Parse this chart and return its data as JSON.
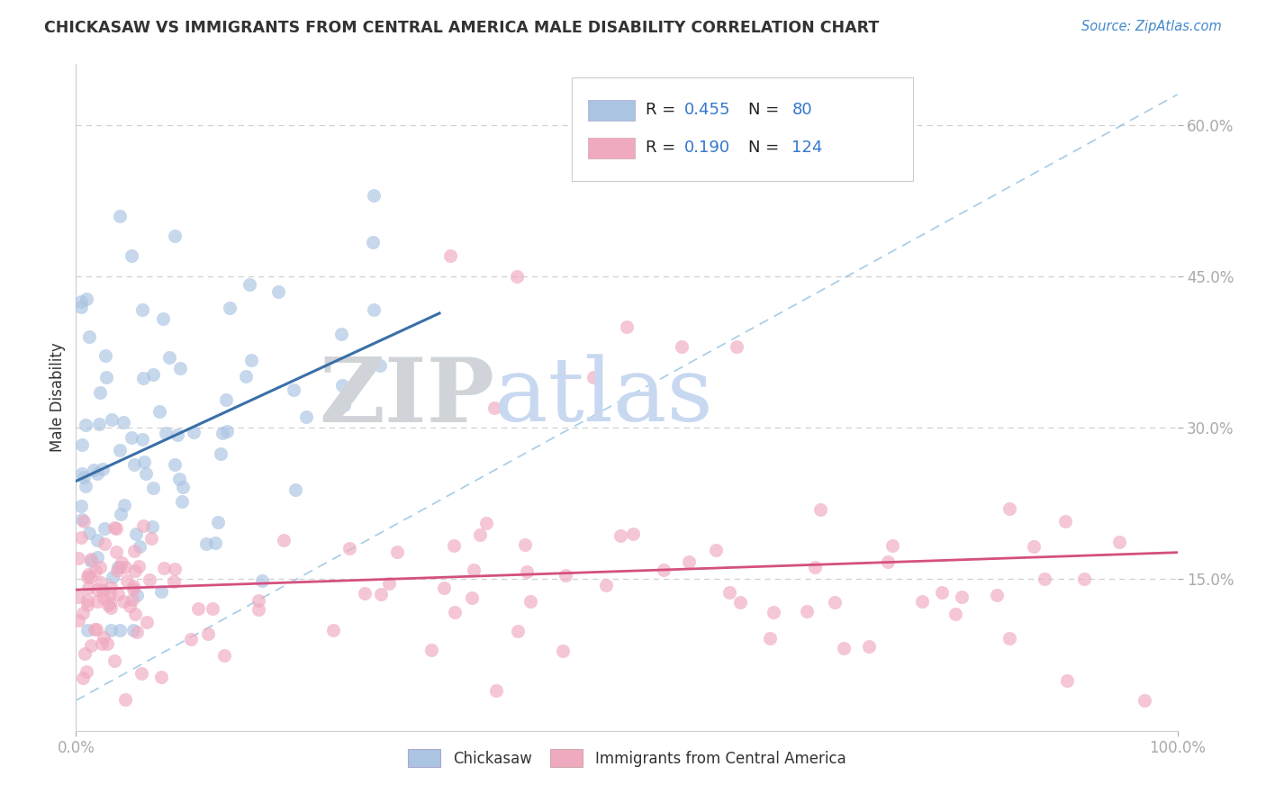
{
  "title": "CHICKASAW VS IMMIGRANTS FROM CENTRAL AMERICA MALE DISABILITY CORRELATION CHART",
  "source_text": "Source: ZipAtlas.com",
  "ylabel": "Male Disability",
  "x_min": 0.0,
  "x_max": 1.0,
  "y_min": 0.0,
  "y_max": 0.66,
  "x_tick_labels": [
    "0.0%",
    "100.0%"
  ],
  "y_tick_labels": [
    "15.0%",
    "30.0%",
    "45.0%",
    "60.0%"
  ],
  "y_tick_values": [
    0.15,
    0.3,
    0.45,
    0.6
  ],
  "legend_r1": "R = 0.455",
  "legend_n1": "N =  80",
  "legend_r2": "R = 0.190",
  "legend_n2": "N = 124",
  "chickasaw_color": "#aac4e2",
  "chickasaw_edge_color": "#aac4e2",
  "chickasaw_line_color": "#3a6fa8",
  "immigrants_color": "#f0aac0",
  "immigrants_edge_color": "#f0aac0",
  "immigrants_line_color": "#d45080",
  "watermark_zip_color": "#d0d4d8",
  "watermark_atlas_color": "#c8d8f0",
  "background_color": "#ffffff",
  "grid_color": "#d0d0d0",
  "title_color": "#333333",
  "source_color": "#4488cc",
  "tick_color_x": "#333333",
  "tick_color_y": "#4488cc",
  "ylabel_color": "#333333",
  "dashed_line_color": "#88bbdd",
  "legend_text_color": "#333333",
  "legend_value_color": "#3377cc"
}
